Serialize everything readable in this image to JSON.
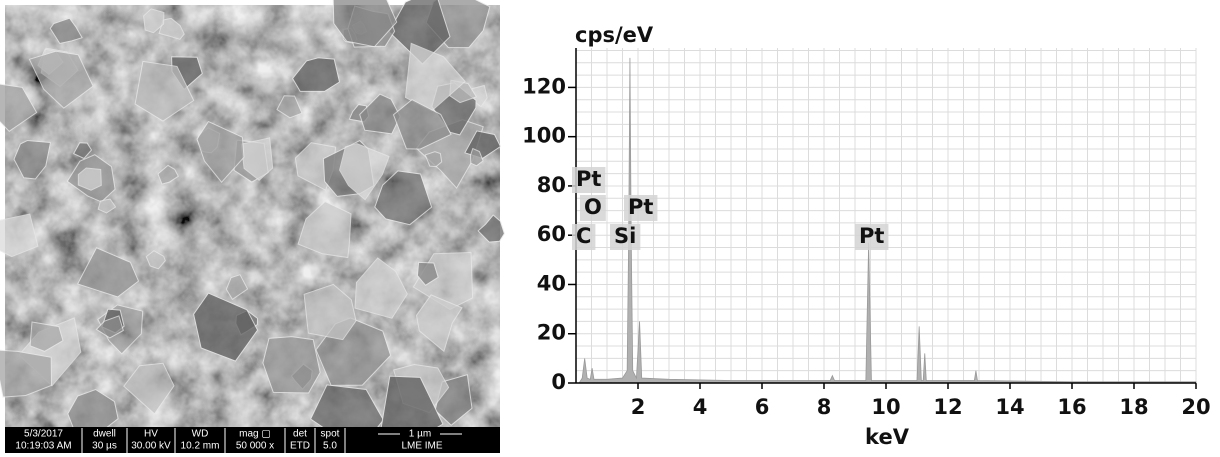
{
  "sem_image": {
    "info_bar": [
      [
        "5/3/2017",
        "10:19:03 AM"
      ],
      [
        "dwell",
        "30 µs"
      ],
      [
        "HV",
        "30.00 kV"
      ],
      [
        "WD",
        "10.2 mm"
      ],
      [
        "mag ▢",
        "50 000 x"
      ],
      [
        "det",
        "ETD"
      ],
      [
        "spot",
        "5.0"
      ]
    ],
    "scale_bar": "1 µm",
    "lab": "LME IME"
  },
  "chart_data": {
    "type": "area",
    "y_label": "cps/eV",
    "x_label": "keV",
    "color": "#b0b0b0",
    "grid": true,
    "x": [
      0.1,
      0.2,
      0.28,
      0.36,
      0.46,
      0.52,
      0.58,
      1.0,
      1.5,
      1.65,
      1.7,
      1.74,
      1.78,
      1.83,
      1.95,
      2.05,
      2.12,
      3,
      5,
      8.2,
      8.27,
      8.34,
      9.35,
      9.44,
      9.53,
      11.0,
      11.07,
      11.14,
      11.2,
      11.25,
      11.3,
      12.85,
      12.9,
      12.95,
      16,
      20
    ],
    "values": [
      0,
      2,
      10,
      2,
      1.5,
      6,
      1.5,
      1.5,
      2,
      5,
      60,
      132,
      60,
      5,
      2,
      25,
      2,
      1.5,
      1,
      1,
      3,
      1,
      1,
      57,
      1,
      1,
      23,
      1,
      1,
      12,
      1,
      1,
      5,
      1,
      0.5,
      0.5
    ],
    "xlim": [
      0,
      20
    ],
    "xticks": [
      2,
      4,
      6,
      8,
      10,
      12,
      14,
      16,
      18,
      20
    ],
    "ylim": [
      0,
      136
    ],
    "yticks": [
      0,
      20,
      40,
      60,
      80,
      100,
      120
    ],
    "element_labels": [
      "Pt",
      "O",
      "Pt",
      "C",
      "Si",
      "Pt"
    ]
  }
}
